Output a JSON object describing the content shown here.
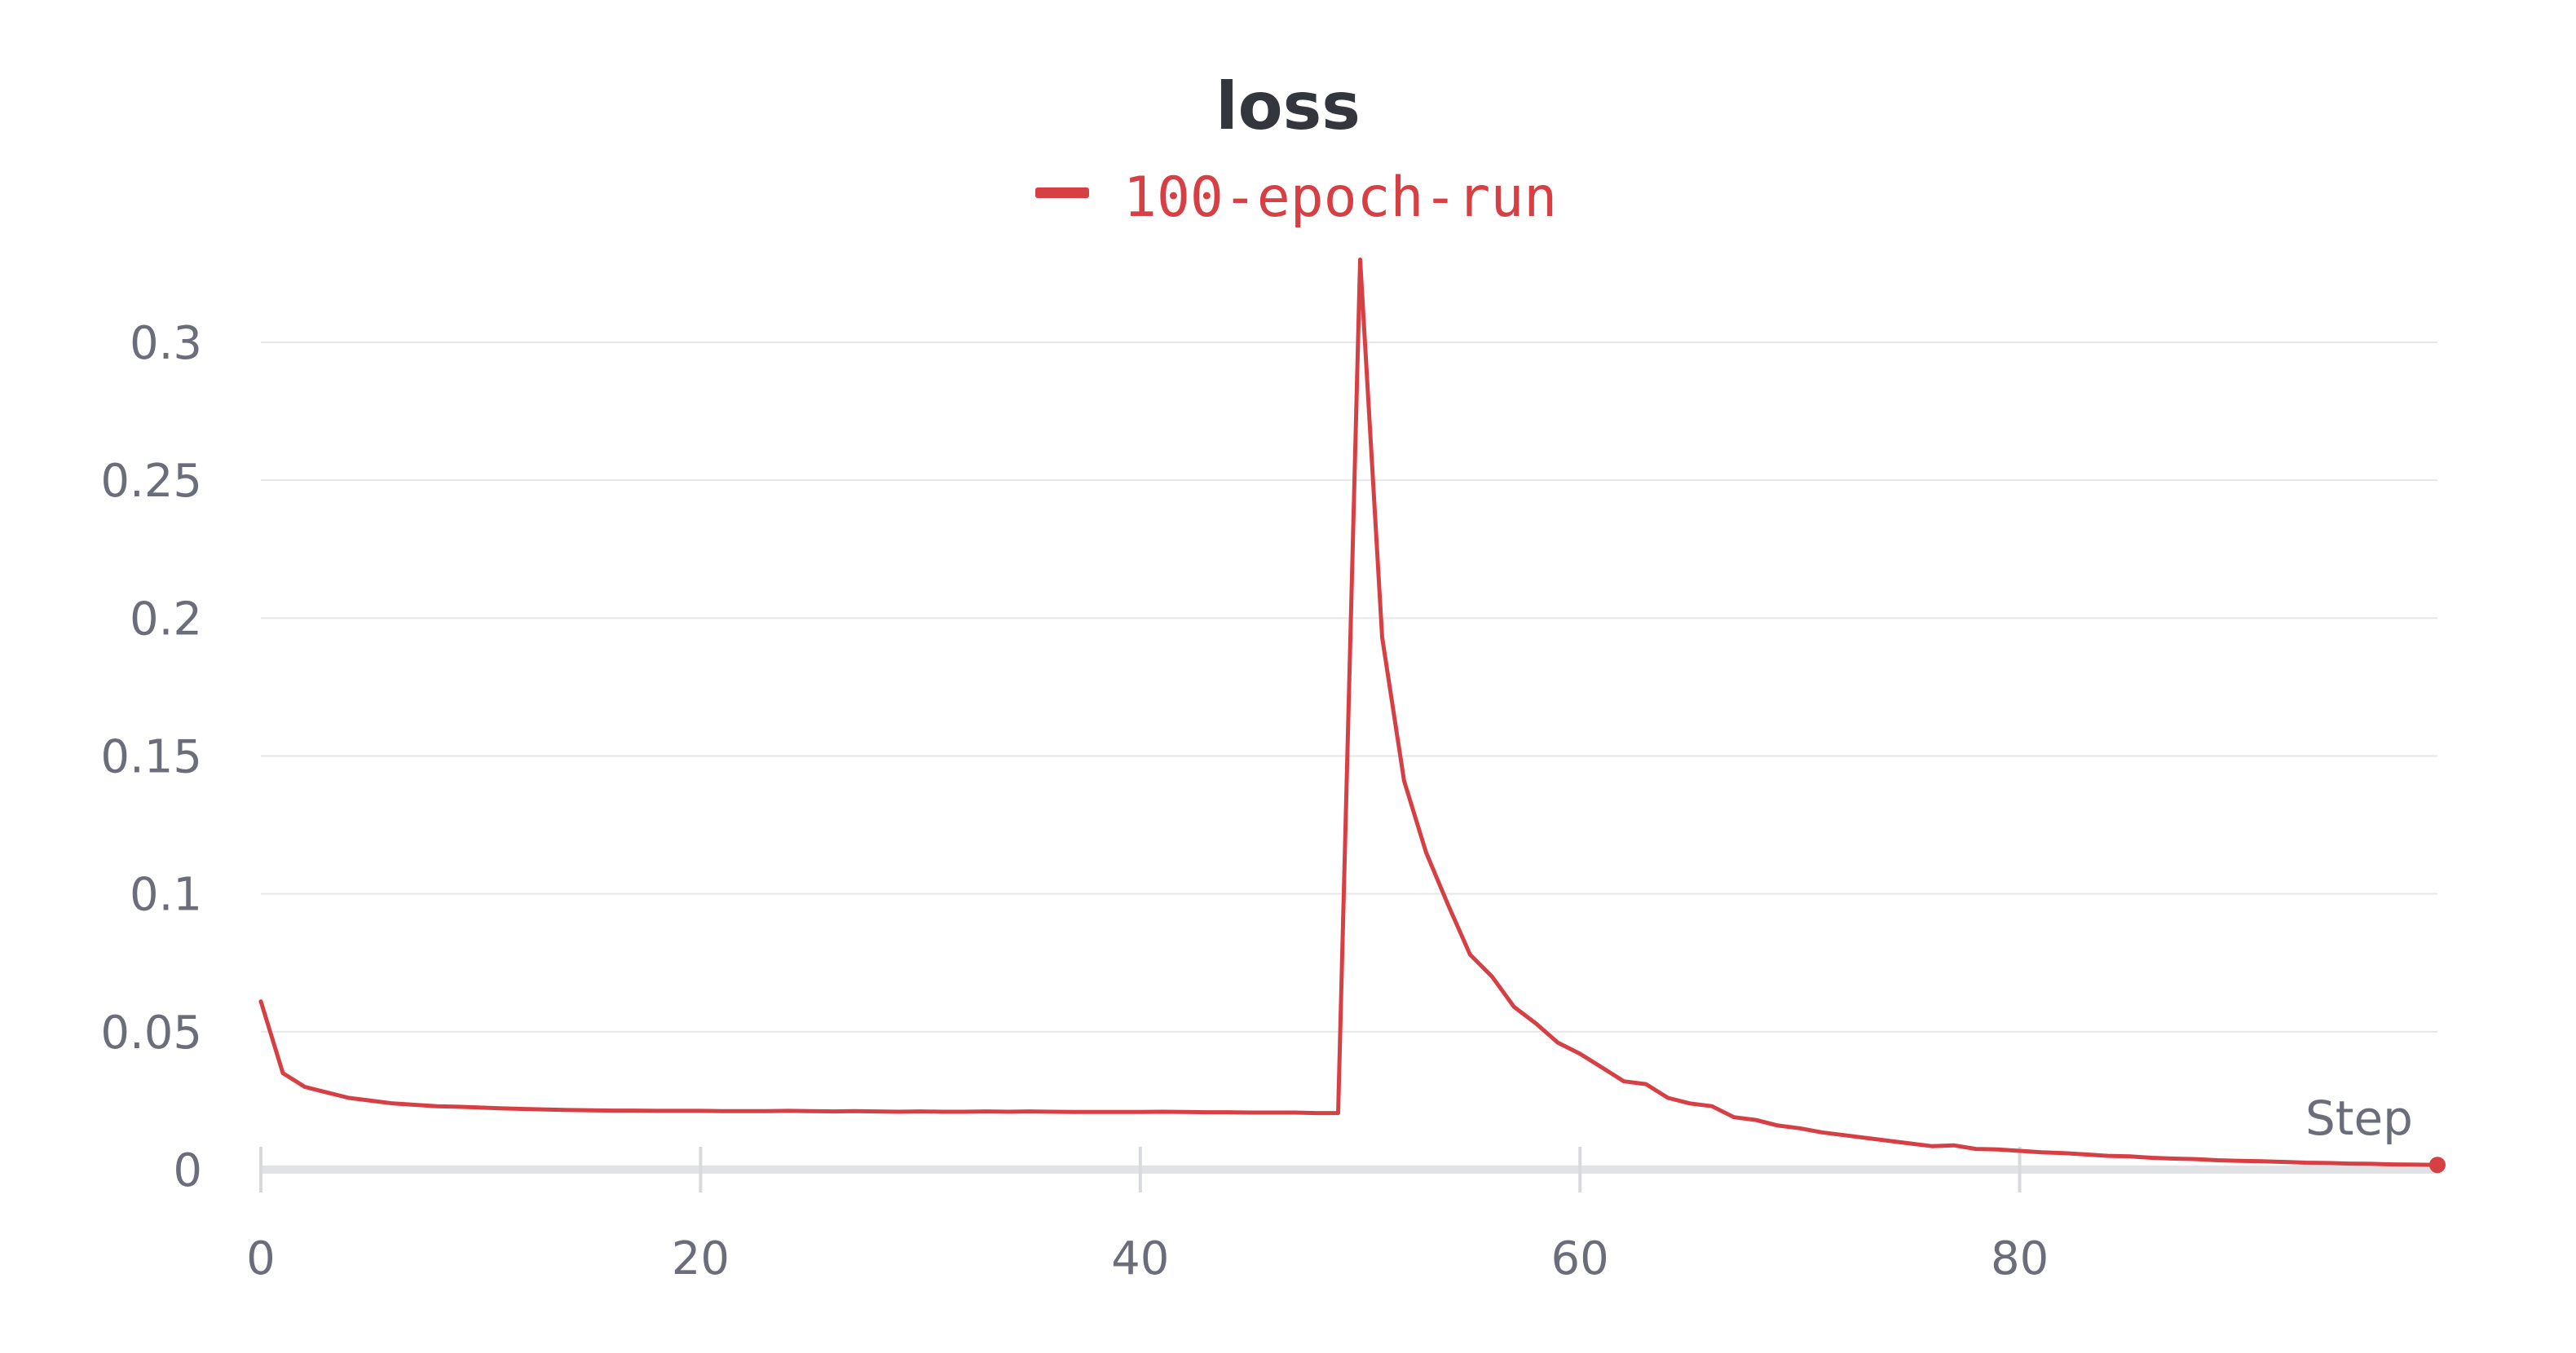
{
  "chart_data": {
    "type": "line",
    "title": "loss",
    "xlabel": "Step",
    "ylabel": "",
    "xlim": [
      0,
      99
    ],
    "ylim": [
      0,
      0.3
    ],
    "x_ticks": [
      "0",
      "20",
      "40",
      "60",
      "80"
    ],
    "y_ticks": [
      "0",
      "0.05",
      "0.1",
      "0.15",
      "0.2",
      "0.25",
      "0.3"
    ],
    "grid": true,
    "legend_position": "top-center",
    "colors": {
      "series": "#d64045",
      "grid": "#e6e7ea",
      "axis": "#e1e2e5",
      "text": "#6b6e7a",
      "title": "#33363d"
    },
    "series": [
      {
        "name": "100-epoch-run",
        "x": [
          0,
          1,
          2,
          3,
          4,
          5,
          6,
          7,
          8,
          9,
          10,
          11,
          12,
          13,
          14,
          15,
          16,
          17,
          18,
          19,
          20,
          21,
          22,
          23,
          24,
          25,
          26,
          27,
          28,
          29,
          30,
          31,
          32,
          33,
          34,
          35,
          36,
          37,
          38,
          39,
          40,
          41,
          42,
          43,
          44,
          45,
          46,
          47,
          48,
          49,
          50,
          51,
          52,
          53,
          54,
          55,
          56,
          57,
          58,
          59,
          60,
          61,
          62,
          63,
          64,
          65,
          66,
          67,
          68,
          69,
          70,
          71,
          72,
          73,
          74,
          75,
          76,
          77,
          78,
          79,
          80,
          81,
          82,
          83,
          84,
          85,
          86,
          87,
          88,
          89,
          90,
          91,
          92,
          93,
          94,
          95,
          96,
          97,
          98,
          99
        ],
        "y": [
          0.061,
          0.035,
          0.03,
          0.028,
          0.026,
          0.025,
          0.024,
          0.0235,
          0.023,
          0.0228,
          0.0225,
          0.0222,
          0.022,
          0.0218,
          0.0216,
          0.0215,
          0.0214,
          0.0214,
          0.0213,
          0.0213,
          0.0213,
          0.0212,
          0.0212,
          0.0212,
          0.0213,
          0.0212,
          0.0211,
          0.0212,
          0.0211,
          0.021,
          0.0211,
          0.021,
          0.021,
          0.0211,
          0.021,
          0.0211,
          0.021,
          0.0209,
          0.0209,
          0.0209,
          0.0209,
          0.021,
          0.0209,
          0.0208,
          0.0208,
          0.0207,
          0.0207,
          0.0207,
          0.0205,
          0.0205,
          0.33,
          0.193,
          0.141,
          0.115,
          0.096,
          0.078,
          0.07,
          0.059,
          0.053,
          0.046,
          0.042,
          0.037,
          0.032,
          0.031,
          0.026,
          0.024,
          0.023,
          0.019,
          0.018,
          0.016,
          0.015,
          0.0135,
          0.0125,
          0.0115,
          0.0105,
          0.0095,
          0.0085,
          0.0088,
          0.0075,
          0.0073,
          0.0068,
          0.0063,
          0.006,
          0.0055,
          0.005,
          0.0048,
          0.0043,
          0.004,
          0.0038,
          0.0034,
          0.0032,
          0.003,
          0.0028,
          0.0025,
          0.0024,
          0.0022,
          0.0021,
          0.0019,
          0.0018,
          0.0017
        ]
      }
    ]
  }
}
